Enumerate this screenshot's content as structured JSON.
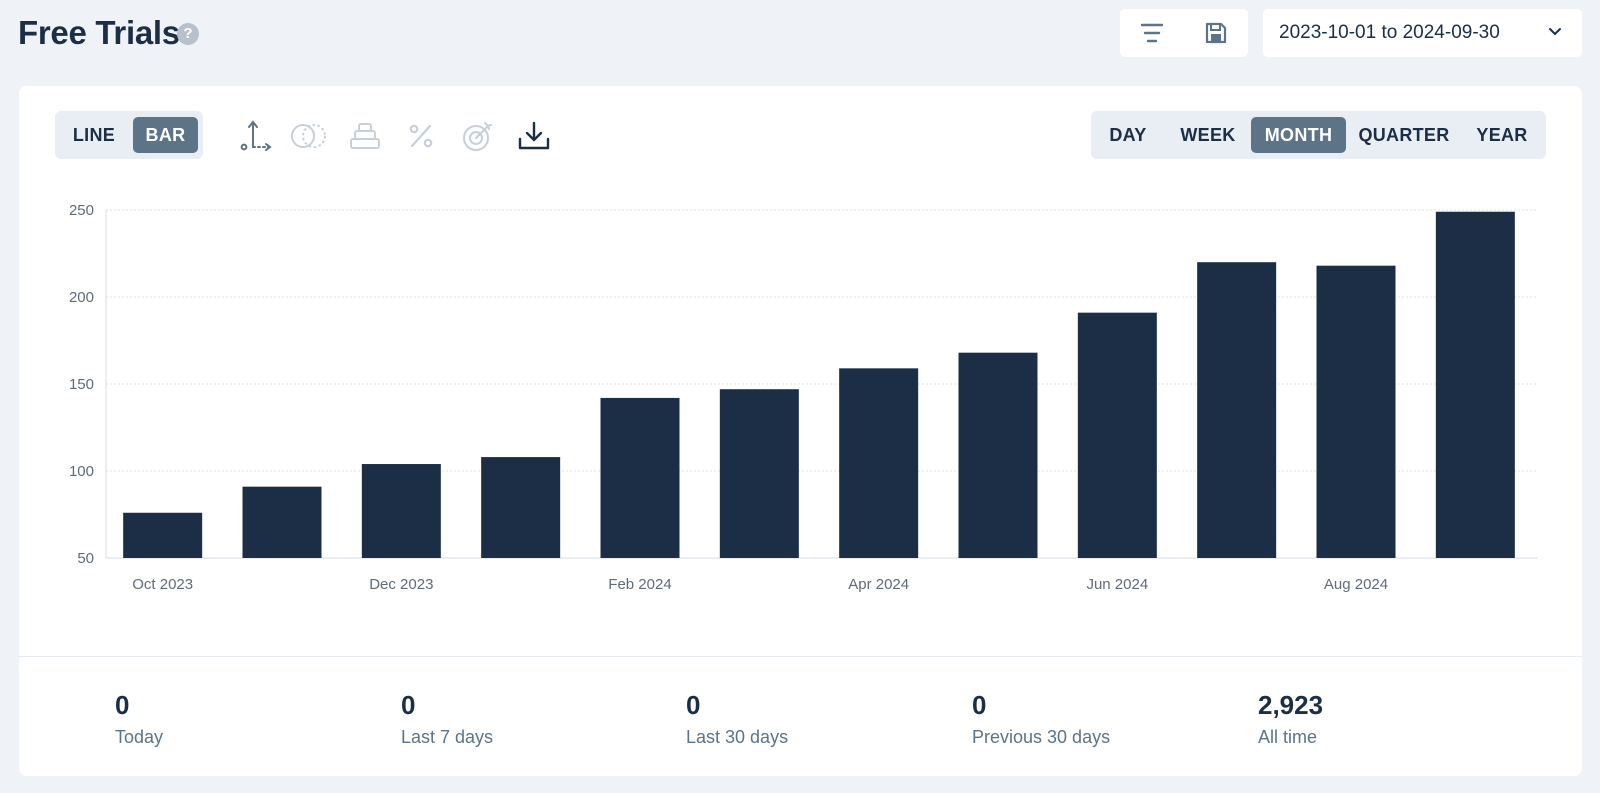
{
  "header": {
    "title": "Free Trials",
    "help_glyph": "?",
    "filter_icon": "filter-icon",
    "save_icon": "save-icon",
    "date_range": "2023-10-01 to 2024-09-30"
  },
  "toolbar": {
    "chart_types": [
      {
        "label": "LINE",
        "active": false
      },
      {
        "label": "BAR",
        "active": true
      }
    ],
    "tool_icons": [
      "axis-icon",
      "compare-icon",
      "stack-icon",
      "percent-icon",
      "goal-icon",
      "download-icon"
    ],
    "periods": [
      {
        "label": "DAY",
        "active": false
      },
      {
        "label": "WEEK",
        "active": false
      },
      {
        "label": "MONTH",
        "active": true
      },
      {
        "label": "QUARTER",
        "active": false
      },
      {
        "label": "YEAR",
        "active": false
      }
    ]
  },
  "chart_data": {
    "type": "bar",
    "categories": [
      "Oct 2023",
      "Nov 2023",
      "Dec 2023",
      "Jan 2024",
      "Feb 2024",
      "Mar 2024",
      "Apr 2024",
      "May 2024",
      "Jun 2024",
      "Jul 2024",
      "Aug 2024",
      "Sep 2024"
    ],
    "tick_labels": [
      "Oct 2023",
      "",
      "Dec 2023",
      "",
      "Feb 2024",
      "",
      "Apr 2024",
      "",
      "Jun 2024",
      "",
      "Aug 2024",
      ""
    ],
    "values": [
      76,
      91,
      104,
      108,
      142,
      147,
      159,
      168,
      191,
      220,
      218,
      249
    ],
    "ylim": [
      50,
      250
    ],
    "yticks": [
      50,
      100,
      150,
      200,
      250
    ],
    "grid": true,
    "bar_color": "#1b2e45",
    "title": "",
    "xlabel": "",
    "ylabel": ""
  },
  "stats": [
    {
      "value": "0",
      "label": "Today"
    },
    {
      "value": "0",
      "label": "Last 7 days"
    },
    {
      "value": "0",
      "label": "Last 30 days"
    },
    {
      "value": "0",
      "label": "Previous 30 days"
    },
    {
      "value": "2,923",
      "label": "All time"
    }
  ]
}
